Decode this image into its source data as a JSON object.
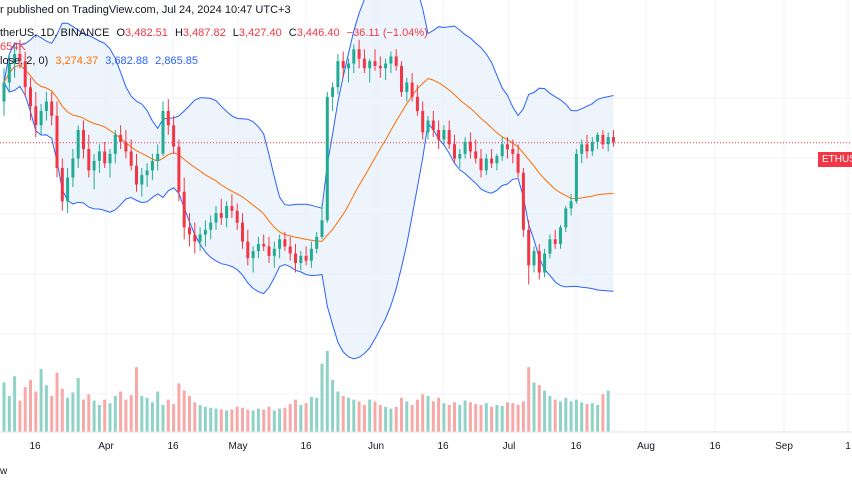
{
  "header": {
    "published": "r published on TradingView.com, Jul 24, 2024 10:47 UTC+3",
    "symbol": "therUS, 1D, BINANCE",
    "ohlc": {
      "o_label": "O",
      "o": "3,482.51",
      "h_label": "H",
      "h": "3,487.82",
      "l_label": "L",
      "l": "3,427.40",
      "c_label": "C",
      "c": "3,446.40",
      "change": "−36.11 (−1.04%)"
    },
    "volume_value": "654K",
    "bb_label": "lose, 2, 0)",
    "bb_values": [
      "3,274.37",
      "3,682.88",
      "2,865.85"
    ]
  },
  "price_badge": "ETHUS",
  "footer": "w",
  "colors": {
    "up": "#22ab94",
    "down": "#f23645",
    "vol_up": "#8fd3c6",
    "vol_down": "#f7a9a7",
    "basis": "#ff6d00",
    "bands": "#2962ff",
    "band_fill": "#e7f0fb",
    "grid": "#f0f3fa"
  },
  "chart_data": {
    "type": "candlestick",
    "x_ticks": [
      "16",
      "Apr",
      "16",
      "May",
      "16",
      "Jun",
      "16",
      "Jul",
      "16",
      "Aug",
      "16",
      "Sep",
      "1"
    ],
    "candles": [
      [
        3620,
        3760,
        3560,
        3700
      ],
      [
        3700,
        3820,
        3660,
        3780
      ],
      [
        3780,
        3860,
        3720,
        3820
      ],
      [
        3820,
        3880,
        3760,
        3790
      ],
      [
        3790,
        3830,
        3640,
        3680
      ],
      [
        3680,
        3720,
        3540,
        3600
      ],
      [
        3600,
        3660,
        3470,
        3520
      ],
      [
        3520,
        3610,
        3480,
        3580
      ],
      [
        3580,
        3660,
        3540,
        3620
      ],
      [
        3620,
        3660,
        3520,
        3560
      ],
      [
        3560,
        3620,
        3300,
        3340
      ],
      [
        3340,
        3380,
        3160,
        3200
      ],
      [
        3200,
        3340,
        3150,
        3300
      ],
      [
        3300,
        3420,
        3260,
        3380
      ],
      [
        3380,
        3520,
        3340,
        3500
      ],
      [
        3500,
        3540,
        3380,
        3420
      ],
      [
        3420,
        3480,
        3300,
        3330
      ],
      [
        3330,
        3400,
        3250,
        3370
      ],
      [
        3370,
        3440,
        3320,
        3410
      ],
      [
        3410,
        3450,
        3340,
        3360
      ],
      [
        3360,
        3420,
        3300,
        3400
      ],
      [
        3400,
        3500,
        3360,
        3480
      ],
      [
        3480,
        3520,
        3420,
        3450
      ],
      [
        3450,
        3500,
        3380,
        3410
      ],
      [
        3410,
        3460,
        3330,
        3350
      ],
      [
        3350,
        3400,
        3240,
        3270
      ],
      [
        3270,
        3340,
        3220,
        3310
      ],
      [
        3310,
        3360,
        3260,
        3330
      ],
      [
        3330,
        3400,
        3290,
        3370
      ],
      [
        3370,
        3440,
        3330,
        3400
      ],
      [
        3400,
        3620,
        3390,
        3580
      ],
      [
        3580,
        3630,
        3480,
        3520
      ],
      [
        3520,
        3560,
        3400,
        3430
      ],
      [
        3430,
        3460,
        3200,
        3240
      ],
      [
        3240,
        3300,
        3040,
        3090
      ],
      [
        3090,
        3150,
        3010,
        3060
      ],
      [
        3060,
        3110,
        2980,
        3030
      ],
      [
        3030,
        3090,
        2990,
        3060
      ],
      [
        3060,
        3120,
        3010,
        3080
      ],
      [
        3080,
        3140,
        3040,
        3110
      ],
      [
        3110,
        3180,
        3080,
        3150
      ],
      [
        3150,
        3210,
        3100,
        3130
      ],
      [
        3130,
        3200,
        3090,
        3180
      ],
      [
        3180,
        3230,
        3130,
        3160
      ],
      [
        3160,
        3190,
        3080,
        3110
      ],
      [
        3110,
        3150,
        3000,
        3030
      ],
      [
        3030,
        3080,
        2930,
        2960
      ],
      [
        2960,
        3010,
        2900,
        2990
      ],
      [
        2990,
        3050,
        2960,
        3020
      ],
      [
        3020,
        3060,
        2990,
        3010
      ],
      [
        3010,
        3050,
        2940,
        2970
      ],
      [
        2970,
        3030,
        2920,
        3000
      ],
      [
        3000,
        3060,
        2960,
        3040
      ],
      [
        3040,
        3070,
        2990,
        3010
      ],
      [
        3010,
        3050,
        2950,
        2980
      ],
      [
        2980,
        3020,
        2900,
        2940
      ],
      [
        2940,
        2990,
        2910,
        2970
      ],
      [
        2970,
        3010,
        2930,
        2950
      ],
      [
        2950,
        3030,
        2920,
        3000
      ],
      [
        3000,
        3070,
        2980,
        3050
      ],
      [
        3050,
        3190,
        3040,
        3120
      ],
      [
        3120,
        3660,
        3110,
        3640
      ],
      [
        3640,
        3700,
        3580,
        3680
      ],
      [
        3680,
        3820,
        3650,
        3790
      ],
      [
        3790,
        3830,
        3720,
        3760
      ],
      [
        3760,
        3800,
        3700,
        3780
      ],
      [
        3780,
        3860,
        3740,
        3840
      ],
      [
        3840,
        3880,
        3760,
        3800
      ],
      [
        3800,
        3840,
        3740,
        3760
      ],
      [
        3760,
        3800,
        3700,
        3790
      ],
      [
        3790,
        3840,
        3750,
        3770
      ],
      [
        3770,
        3810,
        3720,
        3760
      ],
      [
        3760,
        3800,
        3710,
        3780
      ],
      [
        3780,
        3830,
        3740,
        3810
      ],
      [
        3810,
        3840,
        3750,
        3770
      ],
      [
        3770,
        3790,
        3640,
        3660
      ],
      [
        3660,
        3720,
        3620,
        3700
      ],
      [
        3700,
        3740,
        3620,
        3640
      ],
      [
        3640,
        3690,
        3560,
        3580
      ],
      [
        3580,
        3620,
        3460,
        3490
      ],
      [
        3490,
        3560,
        3460,
        3540
      ],
      [
        3540,
        3580,
        3470,
        3500
      ],
      [
        3500,
        3540,
        3420,
        3460
      ],
      [
        3460,
        3520,
        3440,
        3500
      ],
      [
        3500,
        3540,
        3420,
        3440
      ],
      [
        3440,
        3480,
        3360,
        3380
      ],
      [
        3380,
        3420,
        3340,
        3400
      ],
      [
        3400,
        3470,
        3380,
        3450
      ],
      [
        3450,
        3490,
        3380,
        3410
      ],
      [
        3410,
        3460,
        3360,
        3380
      ],
      [
        3380,
        3420,
        3300,
        3330
      ],
      [
        3330,
        3400,
        3310,
        3380
      ],
      [
        3380,
        3420,
        3340,
        3360
      ],
      [
        3360,
        3400,
        3330,
        3390
      ],
      [
        3390,
        3470,
        3370,
        3440
      ],
      [
        3440,
        3470,
        3380,
        3420
      ],
      [
        3420,
        3460,
        3360,
        3400
      ],
      [
        3400,
        3440,
        3300,
        3320
      ],
      [
        3320,
        3340,
        3050,
        3080
      ],
      [
        3080,
        3120,
        2850,
        2930
      ],
      [
        2930,
        3010,
        2900,
        2990
      ],
      [
        2990,
        3020,
        2870,
        2900
      ],
      [
        2900,
        3000,
        2880,
        2980
      ],
      [
        2980,
        3060,
        2960,
        3040
      ],
      [
        3040,
        3080,
        3000,
        3020
      ],
      [
        3020,
        3100,
        3000,
        3090
      ],
      [
        3090,
        3180,
        3070,
        3170
      ],
      [
        3170,
        3230,
        3140,
        3200
      ],
      [
        3200,
        3420,
        3190,
        3400
      ],
      [
        3400,
        3460,
        3360,
        3440
      ],
      [
        3440,
        3480,
        3380,
        3410
      ],
      [
        3410,
        3470,
        3390,
        3450
      ],
      [
        3450,
        3490,
        3420,
        3480
      ],
      [
        3480,
        3500,
        3420,
        3440
      ],
      [
        3440,
        3490,
        3410,
        3470
      ],
      [
        3470,
        3500,
        3430,
        3450
      ]
    ],
    "volumes": [
      0.55,
      0.4,
      0.62,
      0.35,
      0.5,
      0.58,
      0.45,
      0.7,
      0.52,
      0.4,
      0.66,
      0.48,
      0.38,
      0.44,
      0.6,
      0.36,
      0.42,
      0.35,
      0.3,
      0.36,
      0.32,
      0.4,
      0.45,
      0.36,
      0.41,
      0.72,
      0.4,
      0.38,
      0.33,
      0.45,
      0.3,
      0.36,
      0.31,
      0.54,
      0.46,
      0.4,
      0.33,
      0.3,
      0.28,
      0.27,
      0.26,
      0.25,
      0.24,
      0.25,
      0.28,
      0.27,
      0.25,
      0.24,
      0.26,
      0.25,
      0.28,
      0.24,
      0.26,
      0.27,
      0.31,
      0.36,
      0.3,
      0.32,
      0.39,
      0.38,
      0.76,
      0.9,
      0.58,
      0.45,
      0.4,
      0.38,
      0.36,
      0.34,
      0.3,
      0.36,
      0.34,
      0.3,
      0.28,
      0.26,
      0.28,
      0.38,
      0.34,
      0.3,
      0.36,
      0.42,
      0.4,
      0.34,
      0.38,
      0.32,
      0.3,
      0.33,
      0.3,
      0.35,
      0.33,
      0.31,
      0.3,
      0.32,
      0.28,
      0.3,
      0.29,
      0.33,
      0.32,
      0.3,
      0.34,
      0.72,
      0.55,
      0.52,
      0.46,
      0.4,
      0.36,
      0.34,
      0.38,
      0.34,
      0.36,
      0.33,
      0.31,
      0.32,
      0.3,
      0.42,
      0.46
    ],
    "current_price": 3446.4
  }
}
